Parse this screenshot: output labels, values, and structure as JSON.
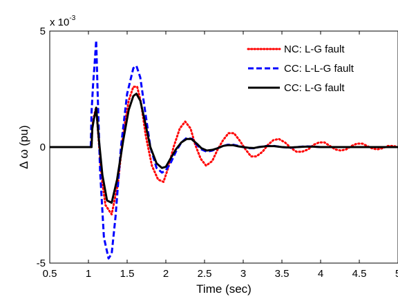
{
  "chart_data": {
    "type": "line",
    "title": "",
    "xlabel": "Time (sec)",
    "ylabel_symbol": "Δ ω",
    "ylabel_unit": "(pu)",
    "y_multiplier": "x 10",
    "y_multiplier_exp": "-3",
    "xlim": [
      0.5,
      5
    ],
    "ylim": [
      -5,
      5
    ],
    "y_scale_factor": 0.001,
    "xticks": [
      0.5,
      1,
      1.5,
      2,
      2.5,
      3,
      3.5,
      4,
      4.5,
      5
    ],
    "xtick_labels": [
      "0.5",
      "1",
      "1.5",
      "2",
      "2.5",
      "3",
      "3.5",
      "4",
      "4.5",
      "5"
    ],
    "yticks": [
      -5,
      0,
      5
    ],
    "ytick_labels": [
      "-5",
      "0",
      "5"
    ],
    "grid": false,
    "legend_position": "top-right",
    "series": [
      {
        "name": "NC: L-G fault",
        "color": "#ff0000",
        "dash": "dotted",
        "x": [
          0.5,
          1.0,
          1.04,
          1.05,
          1.07,
          1.09,
          1.1,
          1.13,
          1.17,
          1.22,
          1.3,
          1.38,
          1.45,
          1.52,
          1.58,
          1.63,
          1.68,
          1.74,
          1.82,
          1.9,
          1.97,
          2.03,
          2.1,
          2.18,
          2.25,
          2.32,
          2.38,
          2.45,
          2.52,
          2.6,
          2.67,
          2.74,
          2.81,
          2.88,
          2.95,
          3.03,
          3.1,
          3.17,
          3.25,
          3.32,
          3.39,
          3.46,
          3.54,
          3.62,
          3.69,
          3.76,
          3.84,
          3.91,
          3.98,
          4.05,
          4.12,
          4.19,
          4.26,
          4.33,
          4.4,
          4.47,
          4.54,
          4.6,
          4.66,
          4.73,
          4.8,
          4.87,
          4.94,
          5.0
        ],
        "y": [
          0,
          0,
          0,
          0.9,
          1.3,
          1.6,
          1.7,
          0.4,
          -1.3,
          -2.5,
          -2.9,
          -1.6,
          0.6,
          2.0,
          2.6,
          2.6,
          1.9,
          0.5,
          -0.8,
          -1.4,
          -1.5,
          -0.9,
          0.0,
          0.8,
          1.1,
          0.8,
          0.1,
          -0.5,
          -0.8,
          -0.6,
          -0.1,
          0.3,
          0.6,
          0.6,
          0.3,
          -0.1,
          -0.4,
          -0.4,
          -0.2,
          0.1,
          0.3,
          0.35,
          0.2,
          -0.05,
          -0.2,
          -0.2,
          -0.1,
          0.1,
          0.2,
          0.2,
          0.05,
          -0.1,
          -0.15,
          -0.1,
          0.05,
          0.15,
          0.15,
          0.05,
          -0.05,
          -0.1,
          -0.05,
          0.05,
          0.05,
          0.0
        ]
      },
      {
        "name": "CC: L-L-G fault",
        "color": "#0000ff",
        "dash": "dashed",
        "x": [
          0.5,
          1.0,
          1.03,
          1.04,
          1.06,
          1.08,
          1.1,
          1.12,
          1.15,
          1.2,
          1.26,
          1.3,
          1.35,
          1.42,
          1.5,
          1.58,
          1.62,
          1.67,
          1.73,
          1.8,
          1.88,
          1.95,
          2.0,
          2.06,
          2.13,
          2.2,
          2.27,
          2.34,
          2.4,
          2.46,
          2.53,
          2.6,
          2.67,
          2.74,
          2.8,
          2.87,
          2.94,
          3.0,
          3.07,
          3.14,
          3.2,
          3.3,
          3.4,
          3.5,
          3.6,
          3.7,
          3.8,
          3.9,
          4.0,
          4.2,
          4.4,
          4.6,
          4.8,
          5.0
        ],
        "y": [
          0,
          0,
          0,
          1.5,
          2.7,
          3.6,
          4.6,
          2.2,
          -1.0,
          -3.9,
          -4.8,
          -4.6,
          -3.0,
          0.0,
          2.3,
          3.4,
          3.5,
          3.0,
          1.6,
          0.0,
          -0.9,
          -1.1,
          -1.0,
          -0.7,
          -0.2,
          0.2,
          0.4,
          0.35,
          0.1,
          -0.1,
          -0.2,
          -0.15,
          -0.05,
          0.05,
          0.1,
          0.1,
          0.05,
          0.0,
          -0.05,
          -0.05,
          0.0,
          0.05,
          0.05,
          0.0,
          -0.03,
          0.0,
          0.03,
          0.02,
          0.0,
          0.0,
          0.0,
          0.0,
          0.0,
          0.0
        ]
      },
      {
        "name": "CC: L-G fault",
        "color": "#000000",
        "dash": "solid",
        "x": [
          0.5,
          1.0,
          1.04,
          1.05,
          1.07,
          1.09,
          1.1,
          1.13,
          1.18,
          1.24,
          1.3,
          1.37,
          1.45,
          1.52,
          1.58,
          1.62,
          1.67,
          1.73,
          1.8,
          1.88,
          1.95,
          2.0,
          2.06,
          2.13,
          2.2,
          2.27,
          2.33,
          2.4,
          2.46,
          2.53,
          2.6,
          2.67,
          2.74,
          2.8,
          2.87,
          2.94,
          3.0,
          3.07,
          3.14,
          3.2,
          3.3,
          3.4,
          3.5,
          3.6,
          3.7,
          3.8,
          3.9,
          4.0,
          4.2,
          4.4,
          4.6,
          4.8,
          5.0
        ],
        "y": [
          0,
          0,
          0,
          0.8,
          1.2,
          1.5,
          1.7,
          0.5,
          -1.2,
          -2.3,
          -2.4,
          -1.4,
          0.3,
          1.6,
          2.2,
          2.3,
          2.0,
          1.1,
          0.0,
          -0.7,
          -0.9,
          -0.85,
          -0.5,
          -0.1,
          0.2,
          0.35,
          0.35,
          0.15,
          -0.05,
          -0.15,
          -0.12,
          -0.05,
          0.05,
          0.08,
          0.08,
          0.03,
          0.0,
          -0.03,
          -0.04,
          0.0,
          0.04,
          0.04,
          0.0,
          -0.02,
          0.0,
          0.02,
          0.02,
          0.0,
          0.0,
          0.0,
          0.0,
          0.0,
          0.0
        ]
      }
    ]
  }
}
